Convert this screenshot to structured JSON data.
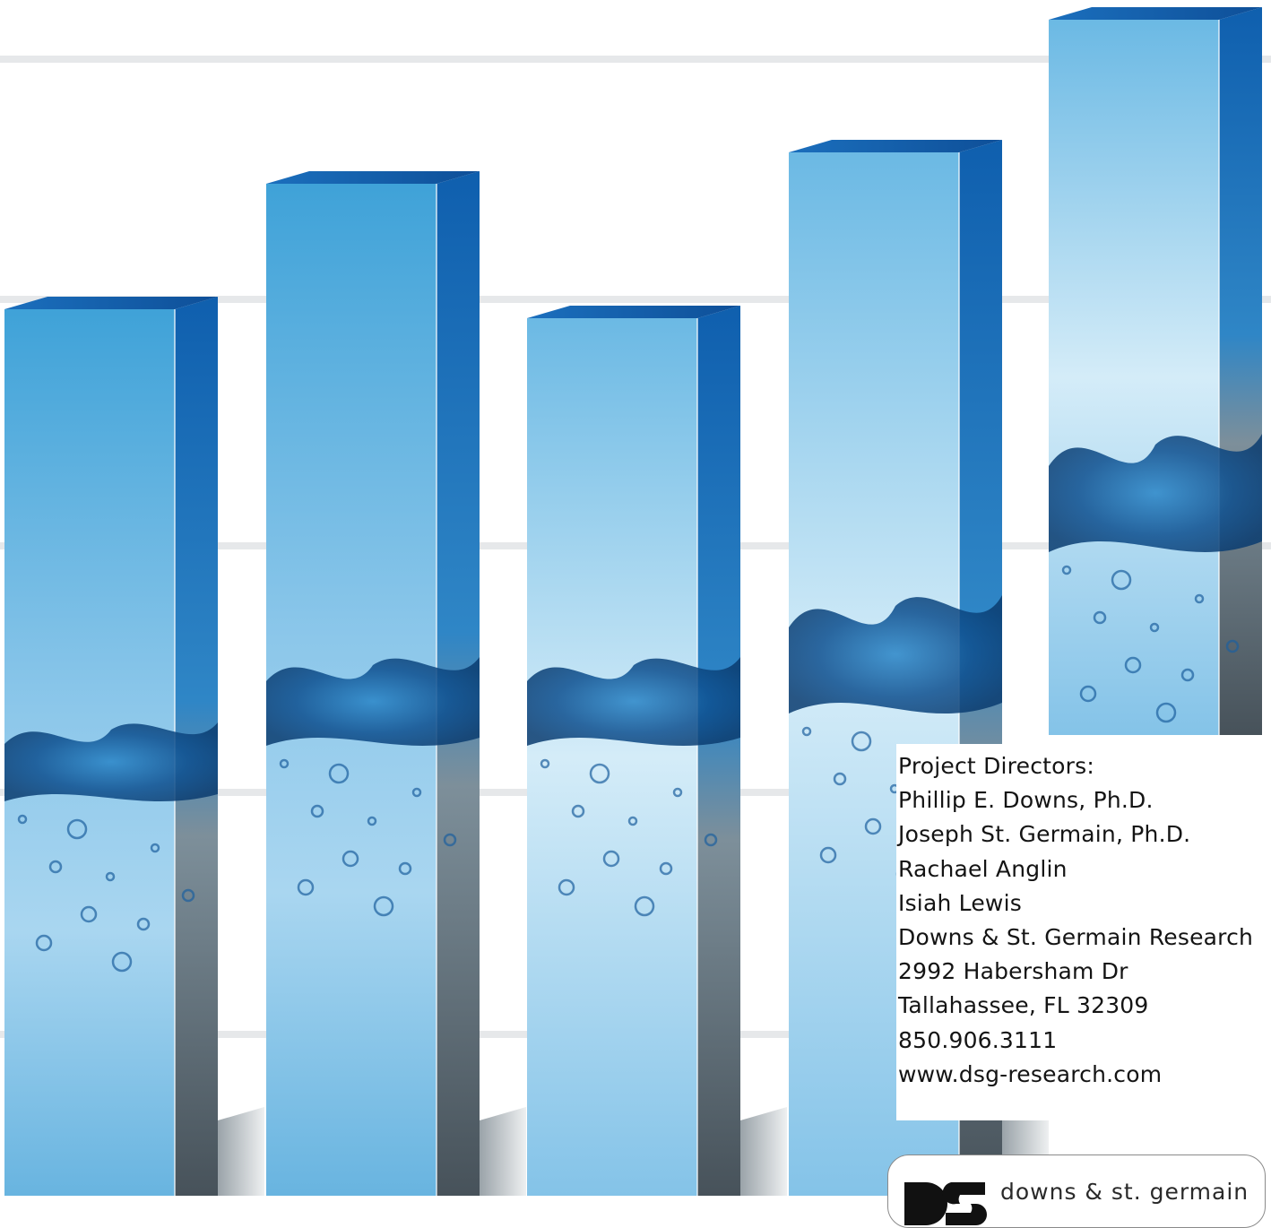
{
  "contact": {
    "lines": [
      "Project Directors:",
      "Phillip E. Downs, Ph.D.",
      "Joseph St. Germain, Ph.D.",
      "Rachael Anglin",
      "Isiah Lewis",
      "Downs & St. Germain Research",
      "2992 Habersham Dr",
      "Tallahassee, FL 32309",
      "850.906.3111",
      "www.dsg-research.com"
    ]
  },
  "logo": {
    "wordmark": "downs & st. germain"
  },
  "colors": {
    "bar_light": "#cfe9f7",
    "bar_mid": "#3fa2d8",
    "bar_side_dark": "#0f5fae",
    "bar_bottom_gray": "#4a545c",
    "water_dark": "#0d4f8f"
  }
}
